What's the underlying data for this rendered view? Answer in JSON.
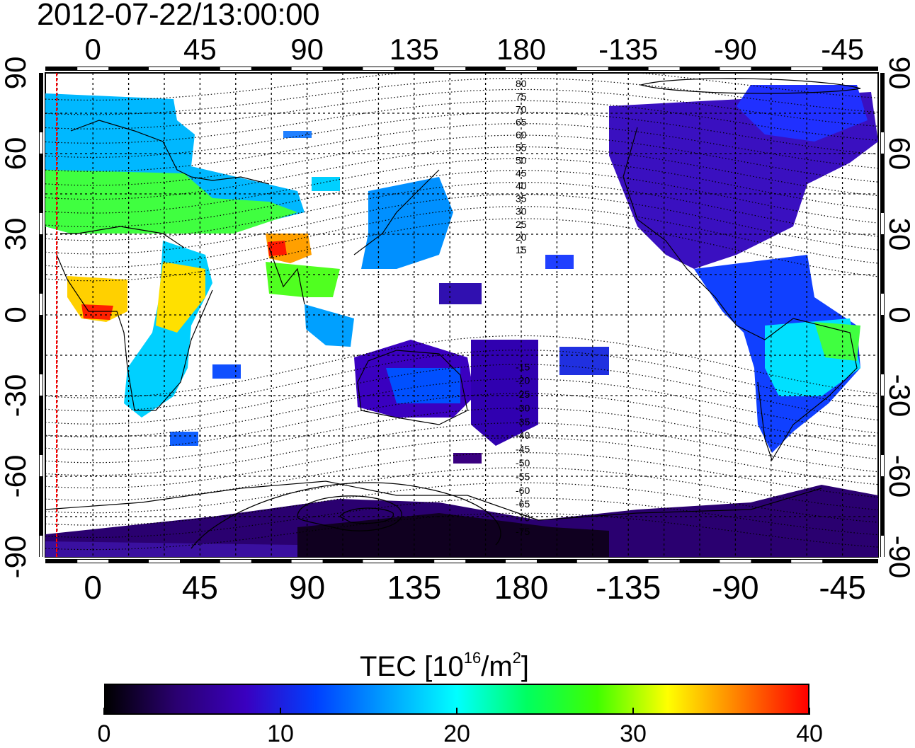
{
  "timestamp": "2012-07-22/13:00:00",
  "map": {
    "lon_ticks": [
      0,
      45,
      90,
      135,
      180,
      -135,
      -90,
      -45
    ],
    "lat_ticks": [
      90,
      60,
      30,
      0,
      -30,
      -60,
      -90
    ],
    "lon_range": [
      -20,
      330
    ],
    "lat_range": [
      -90,
      90
    ],
    "grid": "dotted",
    "dip_contour_labels": [
      80,
      75,
      70,
      65,
      60,
      55,
      50,
      45,
      40,
      35,
      30,
      25,
      20,
      15,
      -15,
      -20,
      -25,
      -30,
      -35,
      -40,
      -45,
      -50,
      -55,
      -60,
      -65,
      -70,
      -75
    ],
    "terminator_longitude": -15,
    "terminator_color": "#ff0000"
  },
  "colorbar": {
    "title_main": "TEC  [10",
    "title_exp1": "16",
    "title_mid": "/m",
    "title_exp2": "2",
    "title_end": "]",
    "ticks": [
      "0",
      "10",
      "20",
      "30",
      "40"
    ],
    "min": 0,
    "max": 40,
    "colormap": [
      "#000000",
      "#2a0070",
      "#3a00c0",
      "#0040ff",
      "#00a0ff",
      "#00ffff",
      "#00ff60",
      "#40ff00",
      "#ffff00",
      "#ff8000",
      "#ff0000"
    ]
  }
}
